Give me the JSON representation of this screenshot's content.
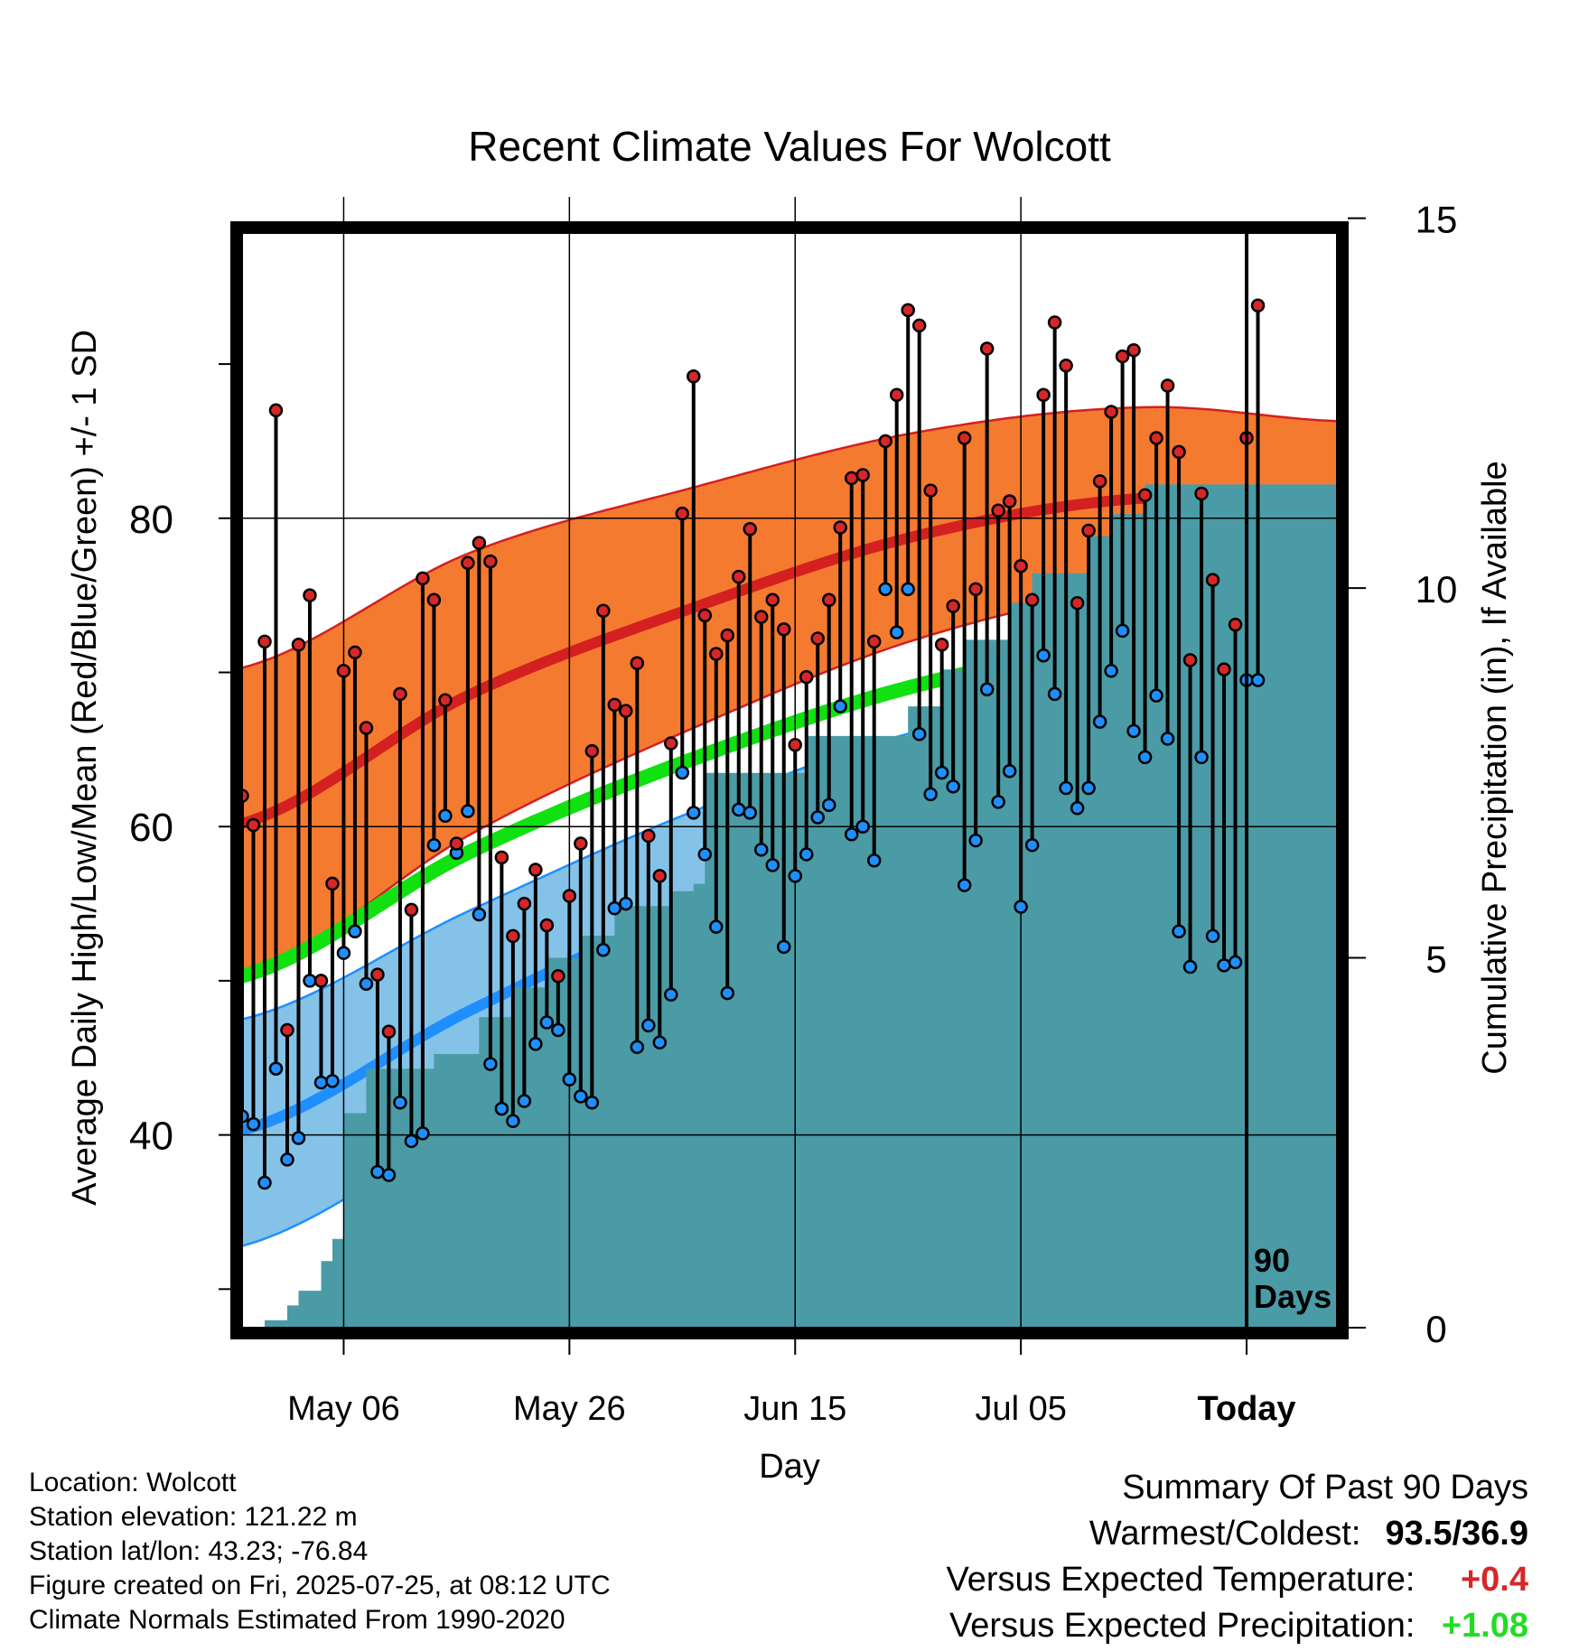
{
  "chart_data": {
    "type": "line",
    "title": "Recent Climate Values For Wolcott",
    "xlabel": "Day",
    "ylabel": "Average Daily High/Low/Mean (Red/Blue/Green) +/- 1 SD",
    "y2label": "Cumulative Precipitation (in), If Available",
    "x_start": "2025-04-27",
    "x_today": "2025-07-25",
    "x_end": "2025-08-02",
    "x_ticks": [
      {
        "date": "2025-05-06",
        "label": "May 06"
      },
      {
        "date": "2025-05-26",
        "label": "May 26"
      },
      {
        "date": "2025-06-15",
        "label": "Jun 15"
      },
      {
        "date": "2025-07-05",
        "label": "Jul 05"
      },
      {
        "date": "2025-07-25",
        "label": "Today",
        "bold": true
      }
    ],
    "ylim": [
      27.5,
      98.5
    ],
    "y_ticks": [
      40,
      60,
      80
    ],
    "y_minor_ticks": [
      30,
      50,
      70,
      90
    ],
    "y2lim": [
      0,
      14.8
    ],
    "y2_ticks": [
      0,
      5,
      10,
      15
    ],
    "marker_label": "90\nDays",
    "normals": {
      "dates": [
        "2025-04-27",
        "2025-05-17",
        "2025-06-06",
        "2025-06-26",
        "2025-07-16",
        "2025-08-02"
      ],
      "high_mean": [
        60.2,
        68.5,
        74.2,
        78.9,
        81.3,
        80.6
      ],
      "high_upper": [
        70.3,
        77.7,
        82.0,
        85.6,
        87.2,
        86.3
      ],
      "high_lower": [
        50.2,
        59.4,
        66.4,
        72.2,
        75.4,
        75.0
      ],
      "low_mean": [
        40.3,
        48.0,
        54.7,
        59.6,
        62.3,
        62.0
      ],
      "low_upper": [
        47.5,
        54.5,
        61.0,
        66.2,
        68.2,
        67.8
      ],
      "low_lower": [
        32.8,
        40.6,
        47.8,
        54.0,
        56.5,
        56.4
      ],
      "mean": [
        50.3,
        58.3,
        64.4,
        69.2,
        71.8,
        71.3
      ]
    },
    "series": [
      {
        "name": "High",
        "color": "#d62728",
        "values": [
          62.0,
          60.1,
          72.0,
          87.0,
          46.8,
          71.8,
          75.0,
          50.0,
          56.3,
          70.1,
          71.3,
          66.4,
          50.4,
          46.7,
          68.6,
          54.6,
          76.1,
          74.7,
          68.2,
          58.9,
          77.1,
          78.4,
          77.2,
          58.0,
          52.9,
          55.0,
          57.2,
          53.6,
          50.3,
          55.5,
          58.9,
          64.9,
          74.0,
          67.9,
          67.5,
          70.6,
          59.4,
          56.8,
          65.4,
          80.3,
          89.2,
          73.7,
          71.2,
          72.4,
          76.2,
          79.3,
          73.6,
          74.7,
          72.8,
          65.3,
          69.7,
          72.2,
          74.7,
          79.4,
          82.6,
          82.8,
          72.0,
          85.0,
          88.0,
          93.5,
          92.5,
          81.8,
          71.8,
          74.3,
          85.2,
          75.4,
          91.0,
          80.5,
          81.1,
          76.9,
          74.7,
          88.0,
          92.7,
          89.9,
          74.5,
          79.2,
          82.4,
          86.9,
          90.5,
          90.9,
          81.5,
          85.2,
          88.6,
          84.3,
          70.8,
          81.6,
          76.0,
          70.2,
          73.1,
          85.2,
          93.8
        ]
      },
      {
        "name": "Low",
        "color": "#1f8fff",
        "values": [
          41.2,
          40.7,
          36.9,
          44.3,
          38.4,
          39.8,
          50.0,
          43.4,
          43.5,
          51.8,
          53.2,
          49.8,
          37.6,
          37.4,
          42.1,
          39.6,
          40.1,
          58.8,
          60.7,
          58.3,
          61.0,
          54.3,
          44.6,
          41.7,
          40.9,
          42.2,
          45.9,
          47.3,
          46.8,
          43.6,
          42.5,
          42.1,
          52.0,
          54.7,
          55.0,
          45.7,
          47.1,
          46.0,
          49.1,
          63.5,
          60.9,
          58.2,
          53.5,
          49.2,
          61.1,
          60.9,
          58.5,
          57.5,
          52.2,
          56.8,
          58.2,
          60.6,
          61.4,
          67.8,
          59.5,
          60.0,
          57.8,
          75.4,
          72.6,
          75.4,
          66.0,
          62.1,
          63.5,
          62.6,
          56.2,
          59.1,
          68.9,
          61.6,
          63.6,
          54.8,
          58.8,
          71.1,
          68.6,
          62.5,
          61.2,
          62.5,
          66.8,
          70.1,
          72.7,
          66.2,
          64.5,
          68.5,
          65.7,
          53.2,
          50.9,
          64.5,
          52.9,
          51.0,
          51.2,
          69.5,
          69.5
        ]
      }
    ],
    "precipitation": {
      "name": "Cumulative Precipitation",
      "color": "#4a9ba5",
      "dates": [
        "2025-04-27",
        "2025-04-29",
        "2025-05-01",
        "2025-05-02",
        "2025-05-04",
        "2025-05-05",
        "2025-05-06",
        "2025-05-08",
        "2025-05-12",
        "2025-05-14",
        "2025-05-18",
        "2025-05-21",
        "2025-05-24",
        "2025-05-27",
        "2025-05-30",
        "2025-06-04",
        "2025-06-06",
        "2025-06-07",
        "2025-06-14",
        "2025-06-16",
        "2025-06-21",
        "2025-06-25",
        "2025-06-28",
        "2025-06-30",
        "2025-07-04",
        "2025-07-06",
        "2025-07-11",
        "2025-07-13",
        "2025-07-16",
        "2025-07-25",
        "2025-08-02"
      ],
      "values": [
        0.0,
        0.1,
        0.3,
        0.5,
        0.9,
        1.2,
        2.9,
        3.5,
        3.5,
        3.7,
        4.2,
        4.6,
        5.0,
        5.3,
        5.7,
        5.9,
        6.0,
        7.5,
        7.5,
        8.0,
        8.0,
        8.4,
        8.9,
        9.3,
        9.8,
        10.2,
        10.7,
        11.0,
        11.4,
        11.4,
        11.4
      ]
    },
    "grid": true,
    "legend": "none"
  },
  "footer": {
    "location": "Location: Wolcott",
    "elevation": "Station elevation: 121.22 m",
    "latlon": "Station lat/lon: 43.23; -76.84",
    "created": "Figure created on Fri, 2025-07-25, at 08:12 UTC",
    "normals": "Climate Normals Estimated From 1990-2020"
  },
  "summary": {
    "title": "Summary Of Past 90 Days",
    "warm_cold_label": "Warmest/Coldest:",
    "warm_cold_value": "93.5/36.9",
    "temp_label": "Versus Expected Temperature:",
    "temp_value": "+0.4",
    "temp_color": "#d62728",
    "precip_label": "Versus Expected Precipitation:",
    "precip_value": "+1.08",
    "precip_color": "#22dd22"
  }
}
